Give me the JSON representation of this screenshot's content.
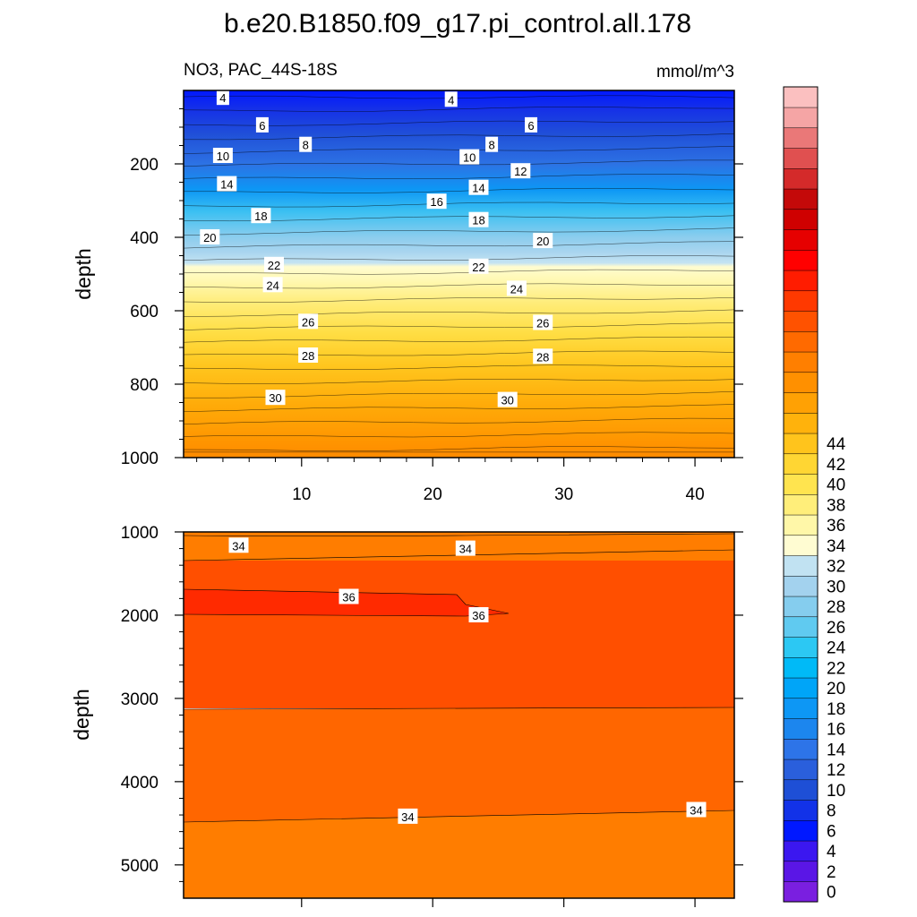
{
  "figure": {
    "title": "b.e20.B1850.f09_g17.pi_control.all.178",
    "subtitle_left": "NO3, PAC_44S-18S",
    "subtitle_right": "mmol/m^3"
  },
  "chart_data": [
    {
      "type": "contour",
      "panel": "upper",
      "ylabel": "depth",
      "xlabel": "",
      "xlim": [
        1,
        43
      ],
      "ylim": [
        0,
        1000
      ],
      "y_reversed": true,
      "x_ticks": [
        10,
        20,
        30,
        40
      ],
      "x_tick_labels": [
        "10",
        "20",
        "30",
        "40"
      ],
      "y_ticks": [
        200,
        400,
        600,
        800,
        1000
      ],
      "y_tick_labels": [
        "200",
        "400",
        "600",
        "800",
        "1000"
      ],
      "contour_levels": [
        4,
        6,
        8,
        10,
        12,
        14,
        16,
        18,
        20,
        22,
        24,
        26,
        28,
        30
      ],
      "contour_labels": [
        {
          "text": "4",
          "x": 4.0,
          "y": 20
        },
        {
          "text": "4",
          "x": 21.4,
          "y": 25
        },
        {
          "text": "6",
          "x": 7.0,
          "y": 95
        },
        {
          "text": "6",
          "x": 27.5,
          "y": 95
        },
        {
          "text": "8",
          "x": 10.3,
          "y": 148
        },
        {
          "text": "8",
          "x": 24.5,
          "y": 148
        },
        {
          "text": "10",
          "x": 4.0,
          "y": 178
        },
        {
          "text": "10",
          "x": 22.8,
          "y": 182
        },
        {
          "text": "12",
          "x": 26.7,
          "y": 220
        },
        {
          "text": "14",
          "x": 4.3,
          "y": 255
        },
        {
          "text": "14",
          "x": 23.5,
          "y": 265
        },
        {
          "text": "16",
          "x": 20.3,
          "y": 303
        },
        {
          "text": "18",
          "x": 6.9,
          "y": 342
        },
        {
          "text": "18",
          "x": 23.5,
          "y": 353
        },
        {
          "text": "20",
          "x": 3.0,
          "y": 400
        },
        {
          "text": "20",
          "x": 28.4,
          "y": 410
        },
        {
          "text": "22",
          "x": 7.9,
          "y": 475
        },
        {
          "text": "22",
          "x": 23.5,
          "y": 480
        },
        {
          "text": "24",
          "x": 7.8,
          "y": 530
        },
        {
          "text": "24",
          "x": 26.4,
          "y": 540
        },
        {
          "text": "26",
          "x": 10.5,
          "y": 630
        },
        {
          "text": "26",
          "x": 28.4,
          "y": 633
        },
        {
          "text": "28",
          "x": 10.5,
          "y": 722
        },
        {
          "text": "28",
          "x": 28.4,
          "y": 725
        },
        {
          "text": "30",
          "x": 8.0,
          "y": 837
        },
        {
          "text": "30",
          "x": 25.7,
          "y": 843
        }
      ]
    },
    {
      "type": "contour",
      "panel": "lower",
      "ylabel": "depth",
      "xlabel": "",
      "xlim": [
        1,
        43
      ],
      "ylim": [
        1000,
        5400
      ],
      "y_reversed": true,
      "y_ticks": [
        1000,
        2000,
        3000,
        4000,
        5000
      ],
      "y_tick_labels": [
        "1000",
        "2000",
        "3000",
        "4000",
        "5000"
      ],
      "contour_levels": [
        34,
        36
      ],
      "contour_labels": [
        {
          "text": "34",
          "x": 5.2,
          "y": 1165
        },
        {
          "text": "34",
          "x": 22.5,
          "y": 1200
        },
        {
          "text": "36",
          "x": 13.6,
          "y": 1780
        },
        {
          "text": "36",
          "x": 23.5,
          "y": 2000
        },
        {
          "text": "34",
          "x": 18.1,
          "y": 4420
        },
        {
          "text": "34",
          "x": 40.1,
          "y": 4340
        }
      ]
    },
    {
      "type": "colorbar",
      "levels_min": 0,
      "levels_max": 46,
      "step": 2,
      "tick_labels": [
        "0",
        "2",
        "4",
        "6",
        "8",
        "10",
        "12",
        "14",
        "16",
        "18",
        "20",
        "22",
        "24",
        "26",
        "28",
        "30",
        "32",
        "34",
        "36",
        "38",
        "40",
        "42",
        "44"
      ],
      "colors": [
        "#7a1fe0",
        "#5a16e6",
        "#3b17f0",
        "#0018ff",
        "#1232e8",
        "#1e4fd6",
        "#2a5fdc",
        "#2d74e8",
        "#1c86ee",
        "#0d97f5",
        "#00a5f8",
        "#00baf7",
        "#2cc8f3",
        "#60caf0",
        "#85cdee",
        "#a3d2ee",
        "#c1e2f2",
        "#fffcd2",
        "#fff7a8",
        "#ffee7a",
        "#ffe44f",
        "#ffd633",
        "#ffc41c",
        "#ffb20c",
        "#ffa104",
        "#ff9000",
        "#ff7f00",
        "#ff6a00",
        "#ff5200",
        "#ff3900",
        "#ff1c00",
        "#ff0000",
        "#e60000",
        "#cf0000",
        "#c40909",
        "#d42a2a",
        "#e05050",
        "#ea7878",
        "#f5a5a5",
        "#fbc0c0"
      ]
    }
  ]
}
